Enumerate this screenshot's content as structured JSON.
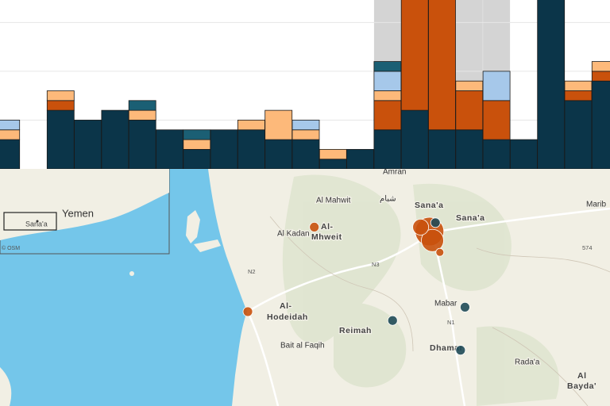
{
  "chart_data": {
    "type": "bar",
    "stacked": true,
    "grid": true,
    "categories": [
      null,
      null,
      null,
      null,
      null,
      null,
      null,
      null,
      null,
      null,
      null,
      null,
      null,
      null,
      null,
      null,
      null,
      null,
      null,
      null,
      null,
      null,
      null
    ],
    "ylim": [
      0,
      17.3
    ],
    "yticks": [
      5,
      10,
      15
    ],
    "highlight": [
      14,
      15,
      16,
      17,
      18
    ],
    "highlight_color": "#d4d4d4",
    "series": [
      {
        "color": "#0b3549",
        "values": [
          3,
          null,
          6,
          5,
          6,
          5,
          4,
          2,
          4,
          4,
          3,
          3,
          1,
          2,
          4,
          6,
          4,
          4,
          3,
          3,
          19,
          7,
          9
        ]
      },
      {
        "color": "#c9510c",
        "values": [
          null,
          null,
          1,
          null,
          null,
          null,
          null,
          null,
          null,
          null,
          null,
          null,
          null,
          null,
          3,
          12,
          14,
          4,
          4,
          null,
          null,
          1,
          1
        ]
      },
      {
        "color": "#fdb97a",
        "values": [
          1,
          null,
          1,
          null,
          null,
          1,
          null,
          1,
          null,
          1,
          3,
          1,
          1,
          null,
          1,
          null,
          null,
          1,
          null,
          null,
          null,
          1,
          1
        ]
      },
      {
        "color": "#a6c8ea",
        "values": [
          1,
          null,
          null,
          null,
          null,
          null,
          null,
          null,
          null,
          null,
          null,
          1,
          null,
          null,
          2,
          null,
          null,
          null,
          3,
          null,
          null,
          null,
          null
        ]
      },
      {
        "color": "#1b5f74",
        "values": [
          null,
          null,
          null,
          null,
          null,
          1,
          null,
          1,
          null,
          null,
          null,
          null,
          null,
          null,
          1,
          null,
          null,
          null,
          null,
          null,
          null,
          null,
          null
        ]
      }
    ]
  },
  "map": {
    "labels": [
      "Amran",
      "شبام",
      "Al Mahwit",
      "Sana'a",
      "Sana'a",
      "Al Kadan",
      "Al-",
      "Mhweit",
      "Marib",
      "Al-",
      "Hodeidah",
      "Mabar",
      "Reimah",
      "Dhamar",
      "Bait al Faqih",
      "Rada'a",
      "Al",
      "Bayda'",
      "N2",
      "N3",
      "N1",
      "574",
      "Yemen",
      "Sana'a",
      "© OSM"
    ],
    "points": [
      {
        "lon": 43.4,
        "lat": 15.37,
        "size": 6,
        "color": "#c9510c"
      },
      {
        "lon": 42.95,
        "lat": 14.8,
        "size": 6,
        "color": "#c9510c"
      },
      {
        "lon": 44.18,
        "lat": 15.34,
        "size": 18,
        "color": "#c9510c"
      },
      {
        "lon": 44.2,
        "lat": 15.28,
        "size": 14,
        "color": "#c9510c"
      },
      {
        "lon": 44.12,
        "lat": 15.37,
        "size": 10,
        "color": "#c9510c"
      },
      {
        "lon": 44.25,
        "lat": 15.2,
        "size": 5,
        "color": "#c9510c"
      },
      {
        "lon": 44.22,
        "lat": 15.4,
        "size": 6,
        "color": "#1f4a57"
      },
      {
        "lon": 43.93,
        "lat": 14.74,
        "size": 6,
        "color": "#1f4a57"
      },
      {
        "lon": 44.42,
        "lat": 14.83,
        "size": 6,
        "color": "#1f4a57"
      },
      {
        "lon": 44.39,
        "lat": 14.54,
        "size": 6,
        "color": "#1f4a57"
      }
    ]
  }
}
